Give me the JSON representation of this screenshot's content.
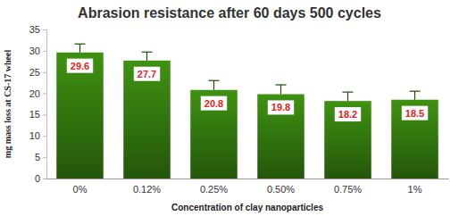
{
  "chart_data": {
    "type": "bar",
    "title": "Abrasion resistance after 60 days 500 cycles",
    "x_label": "Concentration of clay nanoparticles",
    "y_label": "mg mass loss at CS-17 wheel",
    "categories": [
      "0%",
      "0.12%",
      "0.25%",
      "0.50%",
      "0.75%",
      "1%"
    ],
    "values": [
      29.6,
      27.7,
      20.8,
      19.8,
      18.2,
      18.5
    ],
    "error": [
      2.0,
      2.0,
      2.2,
      2.2,
      2.1,
      2.0
    ],
    "color": "#2d6a0c",
    "ylim": [
      0,
      35
    ],
    "yticks": [
      0,
      5,
      10,
      15,
      20,
      25,
      30,
      35
    ],
    "grid": false,
    "data_labels": true
  }
}
